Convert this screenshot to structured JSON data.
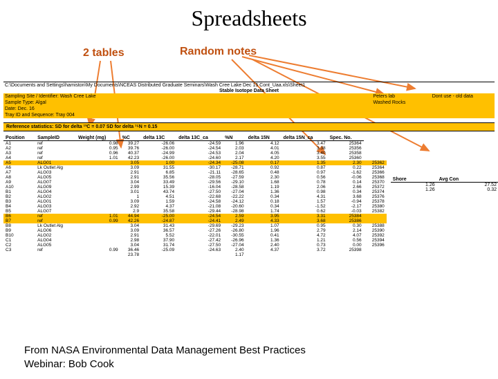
{
  "title": "Spreadsheets",
  "annotations": {
    "tables": "2 tables",
    "notes": "Random notes"
  },
  "colors": {
    "accent_orange": "#ffc000",
    "annotation": "#c05010",
    "arrow": "#ed7d31",
    "highlight": "#ffc000"
  },
  "header": {
    "path": "C:\\Documents and Settings\\hamiston\\My Documents\\NCEAS Distributed Graduate Seminars\\Wash Cree Lake Dec 15 Cont_Uaa.xls\\Sheet1",
    "sheet_title": "Stable Isotope Data Sheet",
    "site": "Sampling Site / Identifier: Wash Cree Lake",
    "sample_type": "Sample Type: Algal",
    "date": "Date: Dec. 16",
    "tray": "Tray ID and Sequence: Tray 004"
  },
  "side_notes": {
    "lab": "Peters lab",
    "washed": "Washed Rocks",
    "dontuse": "Dont use - old data",
    "shore": "Shore",
    "avgcon": "Avg Con"
  },
  "ref_statistics": "Reference statistics: SD for delta ¹³C = 0.07                                        SD for delta ¹⁵N = 0.15",
  "columns": [
    "Position",
    "SampleID",
    "Weight (mg)",
    "%C",
    "delta 13C",
    "delta 13C_ca",
    "%N",
    "delta 15N",
    "delta 15N_ca",
    "Spec. No."
  ],
  "rows": [
    [
      "A1",
      "ref",
      "0.98",
      "39.27",
      "-26.06",
      "-24.59",
      "1.96",
      "4.12",
      "3.47",
      "25364"
    ],
    [
      "A2",
      "ref",
      "0.95",
      "39.76",
      "-26.00",
      "-24.54",
      "2.03",
      "4.01",
      "3.38",
      "25356"
    ],
    [
      "A3",
      "ref",
      "0.96",
      "40.37",
      "-24.99",
      "-24.53",
      "2.04",
      "4.05",
      "3.40",
      "25358"
    ],
    [
      "A4",
      "ref",
      "1.01",
      "42.23",
      "-26.00",
      "-24.60",
      "2.17",
      "4.20",
      "3.55",
      "25360"
    ],
    [
      "A5",
      "ALG01",
      "",
      "3.05",
      "1.00",
      "-24.34",
      "-25.08",
      "0.17",
      "1.35",
      "2.30",
      "25362",
      "s",
      "",
      "1.26",
      "27.52"
    ],
    [
      "A6",
      "Lk Outlet Alg",
      "",
      "3.09",
      "31.55",
      "-30.17",
      "-28.71",
      "0.92",
      "0.87",
      "0.22",
      "25364",
      "",
      "",
      "1.26",
      "0.32"
    ],
    [
      "A7",
      "ALG03",
      "",
      "2.91",
      "6.85",
      "-21.11",
      "-28.65",
      "0.48",
      "0.97",
      "-1.62",
      "25366",
      "s"
    ],
    [
      "A8",
      "ALG05",
      "",
      "2.91",
      "35.56",
      "-28.05",
      "-27.59",
      "2.30",
      "0.56",
      "-0.06",
      "25368"
    ],
    [
      "A9",
      "ALG07",
      "",
      "3.04",
      "33.49",
      "-29.56",
      "-29.10",
      "1.68",
      "0.78",
      "0.14",
      "25370"
    ],
    [
      "A10",
      "ALG09",
      "",
      "2.99",
      "15.39",
      "-16.04",
      "-28.58",
      "1.19",
      "2.06",
      "2.66",
      "25372"
    ],
    [
      "B1",
      "ALG04",
      "",
      "3.01",
      "43.74",
      "-27.50",
      "-27.04",
      "1.36",
      "0.98",
      "0.34",
      "25374",
      "s"
    ],
    [
      "B2",
      "ALG02",
      "",
      "1",
      "4.51",
      "-22.68",
      "-22.22",
      "0.34",
      "4.31",
      "3.68",
      "25376"
    ],
    [
      "B3",
      "ALG01",
      "",
      "3.09",
      "1.59",
      "-24.58",
      "-24.12",
      "0.18",
      "1.57",
      "-0.94",
      "25378",
      "s"
    ],
    [
      "B4",
      "ALG03",
      "",
      "2.92",
      "4.37",
      "-21.08",
      "-20.60",
      "0.34",
      "-1.52",
      "-2.17",
      "25380"
    ],
    [
      "B5",
      "ALG07",
      "",
      "2.9",
      "35.58",
      "-29.44",
      "-28.98",
      "1.74",
      "0.62",
      "-0.03",
      "25382"
    ],
    [
      "B6",
      "ref",
      "1.01",
      "44.94",
      "-25.00",
      "-24.54",
      "2.59",
      "3.95",
      "3.31",
      "25384"
    ],
    [
      "B7",
      "ref",
      "0.99",
      "42.26",
      "-24.87",
      "-24.41",
      "2.49",
      "4.33",
      "3.68",
      "25386"
    ],
    [
      "B8",
      "Lk Outlet Alg",
      "",
      "3.04",
      "31.43",
      "-29.69",
      "-29.23",
      "1.07",
      "0.95",
      "0.30",
      "25388"
    ],
    [
      "B9",
      "ALG06",
      "",
      "3.09",
      "36.57",
      "-27.26",
      "-26.80",
      "1.96",
      "2.79",
      "2.14",
      "25390"
    ],
    [
      "B10",
      "ALG02",
      "",
      "2.91",
      "5.52",
      "-22.01",
      "-30.55",
      "0.41",
      "4.72",
      "4.07",
      "25392"
    ],
    [
      "C1",
      "ALG04",
      "",
      "2.98",
      "37.90",
      "-27.42",
      "-26.96",
      "1.36",
      "1.21",
      "0.56",
      "25394",
      "s"
    ],
    [
      "C2",
      "ALG05",
      "",
      "3.04",
      "31.74",
      "-27.50",
      "-27.04",
      "2.40",
      "0.73",
      "0.00",
      "25396"
    ],
    [
      "C3",
      "ref",
      "0.99",
      "36.46",
      "-25.09",
      "-24.63",
      "2.40",
      "4.37",
      "3.72",
      "25398"
    ],
    [
      "",
      "",
      "",
      "23.78",
      "",
      "",
      "1.17",
      "",
      "",
      "",
      ""
    ]
  ],
  "highlighted_rows": [
    4,
    15,
    16
  ],
  "side_values": [
    {
      "row": 4,
      "c1": "1.26",
      "c2": "27.52"
    },
    {
      "row": 5,
      "c1": "1.26",
      "c2": "0.32"
    }
  ],
  "footer": "From NASA Environmental Data Management Best Practices Webinar: Bob Cook"
}
